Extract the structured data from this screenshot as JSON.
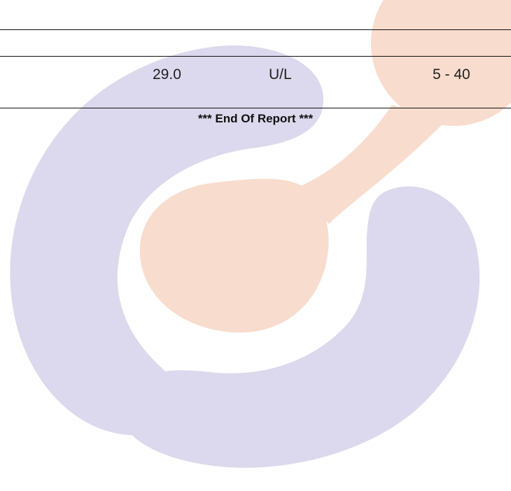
{
  "test_row": {
    "result": "29.0",
    "unit": "U/L",
    "reference_range": "5 - 40"
  },
  "footer": {
    "end_of_report": "*** End Of Report ***"
  },
  "watermark": {
    "icon": "logo-watermark-icon",
    "colors": {
      "lavender": "#dcd9ee",
      "peach": "#f8dccd"
    }
  }
}
